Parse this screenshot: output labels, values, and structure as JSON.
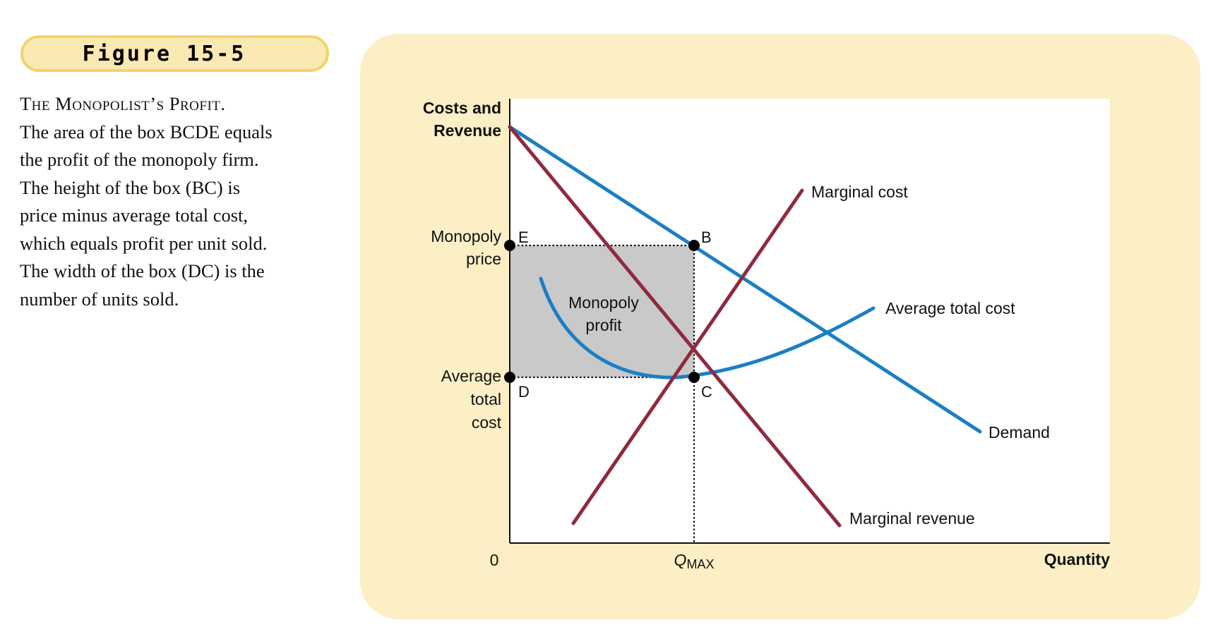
{
  "figure": {
    "label": "Figure 15-5"
  },
  "caption": {
    "title": "The Monopolist’s Profit.",
    "lines": [
      "The area of the box BCDE equals",
      "the profit of the monopoly firm.",
      "The height of the box (BC) is",
      "price minus average total cost,",
      "which equals profit per unit sold.",
      "The width of the box (DC) is the",
      "number of units sold."
    ]
  },
  "colors": {
    "panel_background": "#fcefc6",
    "badge_fill": "#fbe9b3",
    "badge_border": "#f2d46a",
    "demand_line": "#1b7fc4",
    "average_total_cost_curve": "#1b7fc4",
    "marginal_cost_line": "#8f2a3e",
    "marginal_revenue_line": "#8f2a3e",
    "profit_box": "#c9c9c9",
    "plot_background": "#ffffff"
  },
  "chart_data": {
    "type": "line",
    "y_axis_label_lines": [
      "Costs and",
      "Revenue"
    ],
    "x_axis_label": "Quantity",
    "origin_label": "0",
    "grid": false,
    "legend": "none",
    "y_tick_labels": {
      "monopoly_price": [
        "Monopoly",
        "price"
      ],
      "average_total_cost": [
        "Average",
        "total",
        "cost"
      ]
    },
    "x_tick_label": {
      "symbol": "Q",
      "subscript": "MAX"
    },
    "shaded_region_label": [
      "Monopoly",
      "profit"
    ],
    "curves": {
      "demand": {
        "label": "Demand"
      },
      "marginal_revenue": {
        "label": "Marginal revenue"
      },
      "marginal_cost": {
        "label": "Marginal cost"
      },
      "average_total_cost": {
        "label": "Average total cost"
      }
    },
    "points": [
      "B",
      "C",
      "D",
      "E"
    ]
  }
}
